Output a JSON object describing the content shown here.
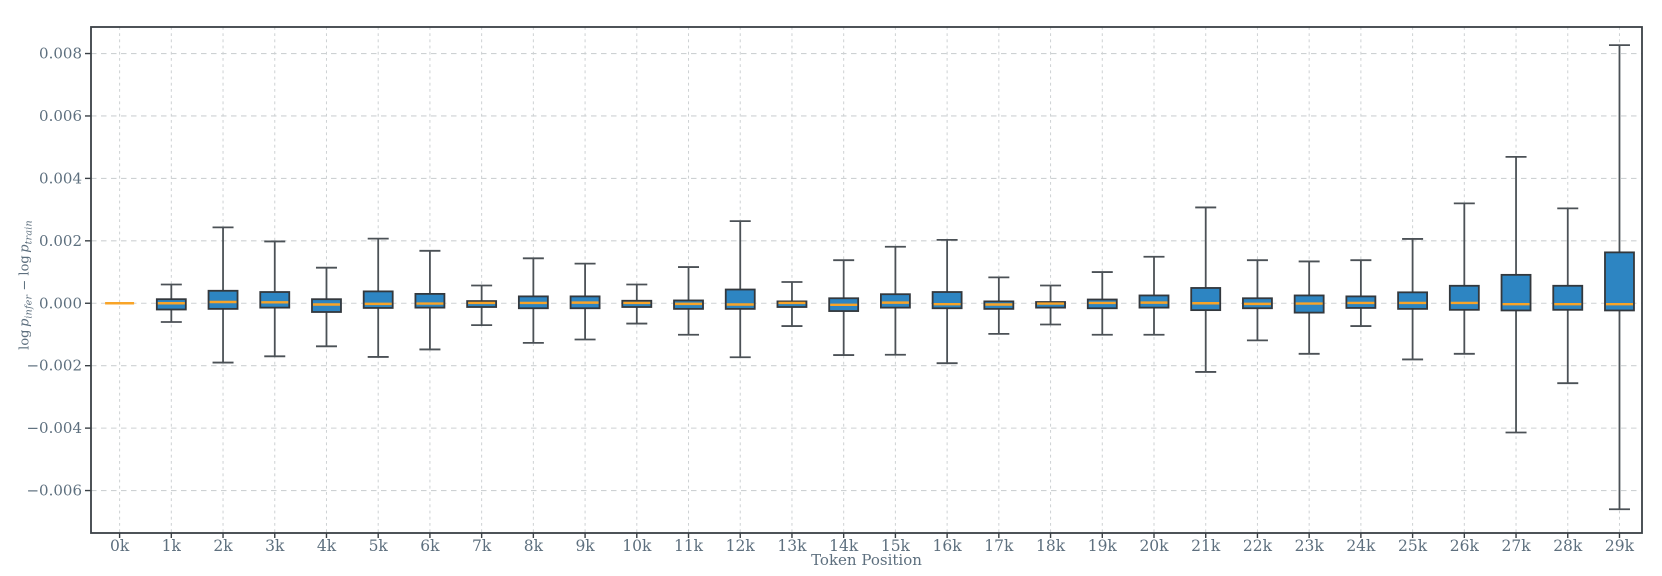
{
  "chart_data": {
    "type": "boxplot",
    "title": "",
    "xlabel": "Token Position",
    "ylabel": "log p_infer − log p_train",
    "ylabel_parts": [
      {
        "text": "log "
      },
      {
        "text": "p",
        "italic": true
      },
      {
        "text": "infer",
        "sub": true
      },
      {
        "text": " − log "
      },
      {
        "text": "p",
        "italic": true
      },
      {
        "text": "train",
        "sub": true
      }
    ],
    "categories": [
      "0k",
      "1k",
      "2k",
      "3k",
      "4k",
      "5k",
      "6k",
      "7k",
      "8k",
      "9k",
      "10k",
      "11k",
      "12k",
      "13k",
      "14k",
      "15k",
      "16k",
      "17k",
      "18k",
      "19k",
      "20k",
      "21k",
      "22k",
      "23k",
      "24k",
      "25k",
      "26k",
      "27k",
      "28k",
      "29k"
    ],
    "y_ticks": [
      {
        "label": "0.008",
        "value": 0.008
      },
      {
        "label": "0.006",
        "value": 0.006
      },
      {
        "label": "0.004",
        "value": 0.004
      },
      {
        "label": "0.002",
        "value": 0.002
      },
      {
        "label": "0.000",
        "value": 0.0
      },
      {
        "label": "−0.002",
        "value": -0.002
      },
      {
        "label": "−0.004",
        "value": -0.004
      },
      {
        "label": "−0.006",
        "value": -0.006
      }
    ],
    "ylim": [
      -0.00736,
      0.00885
    ],
    "grid": true,
    "legend": null,
    "boxes": [
      {
        "category": "0k",
        "whisker_low": 0.0,
        "q1": 0.0,
        "median": 0.0,
        "q3": 0.0,
        "whisker_high": 0.0,
        "degenerate": true
      },
      {
        "category": "1k",
        "whisker_low": -0.0006,
        "q1": -0.0002,
        "median": 0.0,
        "q3": 0.00013,
        "whisker_high": 0.0006
      },
      {
        "category": "2k",
        "whisker_low": -0.0019,
        "q1": -0.00018,
        "median": 4e-05,
        "q3": 0.0004,
        "whisker_high": 0.00243
      },
      {
        "category": "3k",
        "whisker_low": -0.0017,
        "q1": -0.00014,
        "median": 3e-05,
        "q3": 0.00036,
        "whisker_high": 0.00198
      },
      {
        "category": "4k",
        "whisker_low": -0.00138,
        "q1": -0.00028,
        "median": -4e-05,
        "q3": 0.00013,
        "whisker_high": 0.00114
      },
      {
        "category": "5k",
        "whisker_low": -0.00172,
        "q1": -0.00015,
        "median": -2e-05,
        "q3": 0.00038,
        "whisker_high": 0.00207
      },
      {
        "category": "6k",
        "whisker_low": -0.00148,
        "q1": -0.00014,
        "median": -1e-05,
        "q3": 0.0003,
        "whisker_high": 0.00168
      },
      {
        "category": "7k",
        "whisker_low": -0.0007,
        "q1": -0.00012,
        "median": 1e-05,
        "q3": 7e-05,
        "whisker_high": 0.00057
      },
      {
        "category": "8k",
        "whisker_low": -0.00127,
        "q1": -0.00016,
        "median": 1e-05,
        "q3": 0.00022,
        "whisker_high": 0.00144
      },
      {
        "category": "9k",
        "whisker_low": -0.00116,
        "q1": -0.00016,
        "median": 2e-05,
        "q3": 0.00022,
        "whisker_high": 0.00127
      },
      {
        "category": "10k",
        "whisker_low": -0.00065,
        "q1": -0.00012,
        "median": 1e-05,
        "q3": 8e-05,
        "whisker_high": 0.0006
      },
      {
        "category": "11k",
        "whisker_low": -0.00101,
        "q1": -0.00018,
        "median": -2e-05,
        "q3": 9e-05,
        "whisker_high": 0.00116
      },
      {
        "category": "12k",
        "whisker_low": -0.00173,
        "q1": -0.00018,
        "median": -4e-05,
        "q3": 0.00044,
        "whisker_high": 0.00263
      },
      {
        "category": "13k",
        "whisker_low": -0.00073,
        "q1": -0.00012,
        "median": 1e-05,
        "q3": 6e-05,
        "whisker_high": 0.00068
      },
      {
        "category": "14k",
        "whisker_low": -0.00166,
        "q1": -0.00025,
        "median": -5e-05,
        "q3": 0.00016,
        "whisker_high": 0.00138
      },
      {
        "category": "15k",
        "whisker_low": -0.00165,
        "q1": -0.00014,
        "median": 2e-05,
        "q3": 0.00029,
        "whisker_high": 0.00181
      },
      {
        "category": "16k",
        "whisker_low": -0.00192,
        "q1": -0.00016,
        "median": -3e-05,
        "q3": 0.00036,
        "whisker_high": 0.00203
      },
      {
        "category": "17k",
        "whisker_low": -0.00098,
        "q1": -0.00018,
        "median": -4e-05,
        "q3": 6e-05,
        "whisker_high": 0.00083
      },
      {
        "category": "18k",
        "whisker_low": -0.00068,
        "q1": -0.00014,
        "median": -1e-05,
        "q3": 4e-05,
        "whisker_high": 0.00057
      },
      {
        "category": "19k",
        "whisker_low": -0.00101,
        "q1": -0.00016,
        "median": 1e-05,
        "q3": 0.00012,
        "whisker_high": 0.001
      },
      {
        "category": "20k",
        "whisker_low": -0.00101,
        "q1": -0.00014,
        "median": 2e-05,
        "q3": 0.00025,
        "whisker_high": 0.00149
      },
      {
        "category": "21k",
        "whisker_low": -0.0022,
        "q1": -0.00022,
        "median": 0.0,
        "q3": 0.00049,
        "whisker_high": 0.00307
      },
      {
        "category": "22k",
        "whisker_low": -0.00119,
        "q1": -0.00016,
        "median": -2e-05,
        "q3": 0.00016,
        "whisker_high": 0.00138
      },
      {
        "category": "23k",
        "whisker_low": -0.00162,
        "q1": -0.0003,
        "median": -1e-05,
        "q3": 0.00025,
        "whisker_high": 0.00134
      },
      {
        "category": "24k",
        "whisker_low": -0.00073,
        "q1": -0.00015,
        "median": 1e-05,
        "q3": 0.00022,
        "whisker_high": 0.00138
      },
      {
        "category": "25k",
        "whisker_low": -0.0018,
        "q1": -0.00018,
        "median": 1e-05,
        "q3": 0.00035,
        "whisker_high": 0.00206
      },
      {
        "category": "26k",
        "whisker_low": -0.00162,
        "q1": -0.00021,
        "median": 1e-05,
        "q3": 0.00056,
        "whisker_high": 0.0032
      },
      {
        "category": "27k",
        "whisker_low": -0.00414,
        "q1": -0.00023,
        "median": -3e-05,
        "q3": 0.00091,
        "whisker_high": 0.00469
      },
      {
        "category": "28k",
        "whisker_low": -0.00256,
        "q1": -0.00021,
        "median": -3e-05,
        "q3": 0.00056,
        "whisker_high": 0.00304
      },
      {
        "category": "29k",
        "whisker_low": -0.0066,
        "q1": -0.00023,
        "median": -3e-05,
        "q3": 0.00163,
        "whisker_high": 0.00827
      }
    ],
    "colors": {
      "background": "#ffffff",
      "box_fill": "#2d85c2",
      "box_edge": "#33383d",
      "whisker": "#4b5156",
      "median": "#f8a428",
      "grid": "#cdd1d3",
      "spine": "#3a4045",
      "tick_label": "#5d6f7e",
      "axis_label": "#5d6f7e"
    }
  }
}
